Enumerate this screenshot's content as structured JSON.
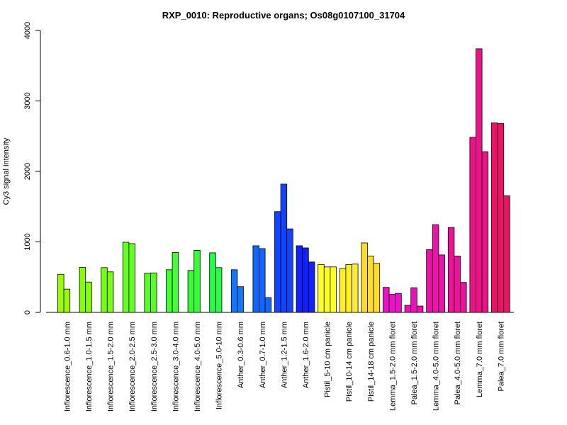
{
  "chart_data": {
    "type": "bar",
    "title": "RXP_0010: Reproductive organs; Os08g0107100_31704",
    "xlabel": "",
    "ylabel": "Cy3 signal intensity",
    "ylim": [
      0,
      4000
    ],
    "yticks": [
      0,
      1000,
      2000,
      3000,
      4000
    ],
    "grid": false,
    "legend": "none",
    "groups": [
      {
        "label": "Inflorescence_0.6-1.0 mm",
        "color": "#99ff00",
        "values": [
          540,
          330
        ]
      },
      {
        "label": "Inflorescence_1.0-1.5 mm",
        "color": "#88ff00",
        "values": [
          640,
          430
        ]
      },
      {
        "label": "Inflorescence_1.5-2.0 mm",
        "color": "#77ff11",
        "values": [
          635,
          575
        ]
      },
      {
        "label": "Inflorescence_2.0-2.5 mm",
        "color": "#66ff22",
        "values": [
          995,
          975
        ]
      },
      {
        "label": "Inflorescence_2.5-3.0 mm",
        "color": "#55ff22",
        "values": [
          555,
          560
        ]
      },
      {
        "label": "Inflorescence_3.0-4.0 mm",
        "color": "#44ff33",
        "values": [
          605,
          850
        ]
      },
      {
        "label": "Inflorescence_4.0-5.0 mm",
        "color": "#33ff33",
        "values": [
          595,
          880
        ]
      },
      {
        "label": "Inflorescence_5.0-10 mm",
        "color": "#22ff44",
        "values": [
          845,
          635
        ]
      },
      {
        "label": "Anther_0.3-0.6 mm",
        "color": "#1177ff",
        "values": [
          605,
          365
        ]
      },
      {
        "label": "Anther_0.7-1.0 mm",
        "color": "#1166ff",
        "values": [
          945,
          905,
          210
        ]
      },
      {
        "label": "Anther_1.2-1.5 mm",
        "color": "#1144ff",
        "values": [
          1430,
          1820,
          1185
        ]
      },
      {
        "label": "Anther_1.6-2.0 mm",
        "color": "#1122ff",
        "values": [
          945,
          915,
          715
        ]
      },
      {
        "label": "Pistil_5-10 cm panicle",
        "color": "#ffff22",
        "values": [
          680,
          645,
          645
        ]
      },
      {
        "label": "Pistil_10-14 cm panicle",
        "color": "#ffee22",
        "values": [
          620,
          680,
          685
        ]
      },
      {
        "label": "Pistil_14-18 cm panicle",
        "color": "#ffdd22",
        "values": [
          985,
          800,
          695
        ]
      },
      {
        "label": "Lemma_1.5-2.0 mm floret",
        "color": "#ee11cc",
        "values": [
          355,
          255,
          270
        ]
      },
      {
        "label": "Palea_1.5-2.0 mm floret",
        "color": "#ee11bb",
        "values": [
          100,
          350,
          90
        ]
      },
      {
        "label": "Lemma_4.0-5.0 mm floret",
        "color": "#ee11aa",
        "values": [
          890,
          1245,
          815
        ]
      },
      {
        "label": "Palea_4.0-5.0 mm floret",
        "color": "#ee1199",
        "values": [
          1205,
          800,
          425
        ]
      },
      {
        "label": "Lemma_7.0 mm floret",
        "color": "#ee1188",
        "values": [
          2485,
          3740,
          2280
        ]
      },
      {
        "label": "Palea_7.0 mm floret",
        "color": "#ee1166",
        "values": [
          2690,
          2680,
          1655
        ]
      }
    ]
  }
}
